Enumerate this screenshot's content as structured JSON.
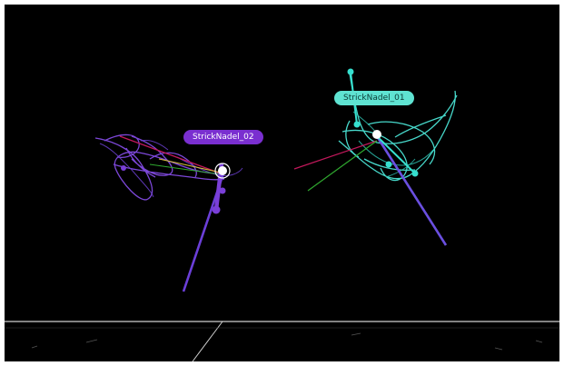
{
  "viewport": {
    "background": "#000000"
  },
  "colors": {
    "needle_02": "#7a3fd8",
    "needle_02_trail": "#8a4ff0",
    "needle_01": "#36e0cf",
    "needle_01_trail": "#4ff0e0",
    "needle_01_shaft": "#6a4fe0",
    "axis_x": "#c2185b",
    "axis_y": "#2fa82f",
    "axis_z": "#d9c23a",
    "joint": "#ffffff",
    "grid": "#d0d0d0"
  },
  "objects": [
    {
      "id": "needle-02",
      "label": "StrickNadel_02",
      "label_bg": "#7a2fd0"
    },
    {
      "id": "needle-01",
      "label": "StrickNadel_01",
      "label_bg": "#5fe3d2"
    }
  ]
}
